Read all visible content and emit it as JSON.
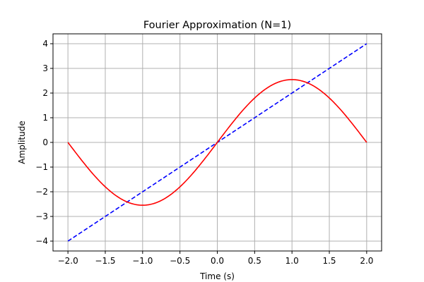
{
  "chart_data": {
    "type": "line",
    "title": "Fourier Approximation (N=1)",
    "xlabel": "Time (s)",
    "ylabel": "Amplitude",
    "xlim": [
      -2.2,
      2.2
    ],
    "ylim": [
      -4.4,
      4.4
    ],
    "grid": true,
    "x_ticks": [
      -2.0,
      -1.5,
      -1.0,
      -0.5,
      0.0,
      0.5,
      1.0,
      1.5,
      2.0
    ],
    "x_tick_labels": [
      "−2.0",
      "−1.5",
      "−1.0",
      "−0.5",
      "0.0",
      "0.5",
      "1.0",
      "1.5",
      "2.0"
    ],
    "y_ticks": [
      -4,
      -3,
      -2,
      -1,
      0,
      1,
      2,
      3,
      4
    ],
    "y_tick_labels": [
      "−4",
      "−3",
      "−2",
      "−1",
      "0",
      "1",
      "2",
      "3",
      "4"
    ],
    "series": [
      {
        "color": "#0000ff",
        "style": "dashed",
        "x": [
          -2.0,
          2.0
        ],
        "y": [
          -4.0,
          4.0
        ]
      },
      {
        "color": "#ff0000",
        "style": "solid",
        "amplitude": 2.546,
        "x": [
          -2.0,
          -1.75,
          -1.5,
          -1.25,
          -1.0,
          -0.75,
          -0.5,
          -0.25,
          0.0,
          0.25,
          0.5,
          0.75,
          1.0,
          1.25,
          1.5,
          1.75,
          2.0
        ],
        "y": [
          0.0,
          -0.974,
          -1.8,
          -2.352,
          -2.546,
          -2.352,
          -1.8,
          -0.974,
          0.0,
          0.974,
          1.8,
          2.352,
          2.546,
          2.352,
          1.8,
          0.974,
          0.0
        ]
      }
    ]
  }
}
